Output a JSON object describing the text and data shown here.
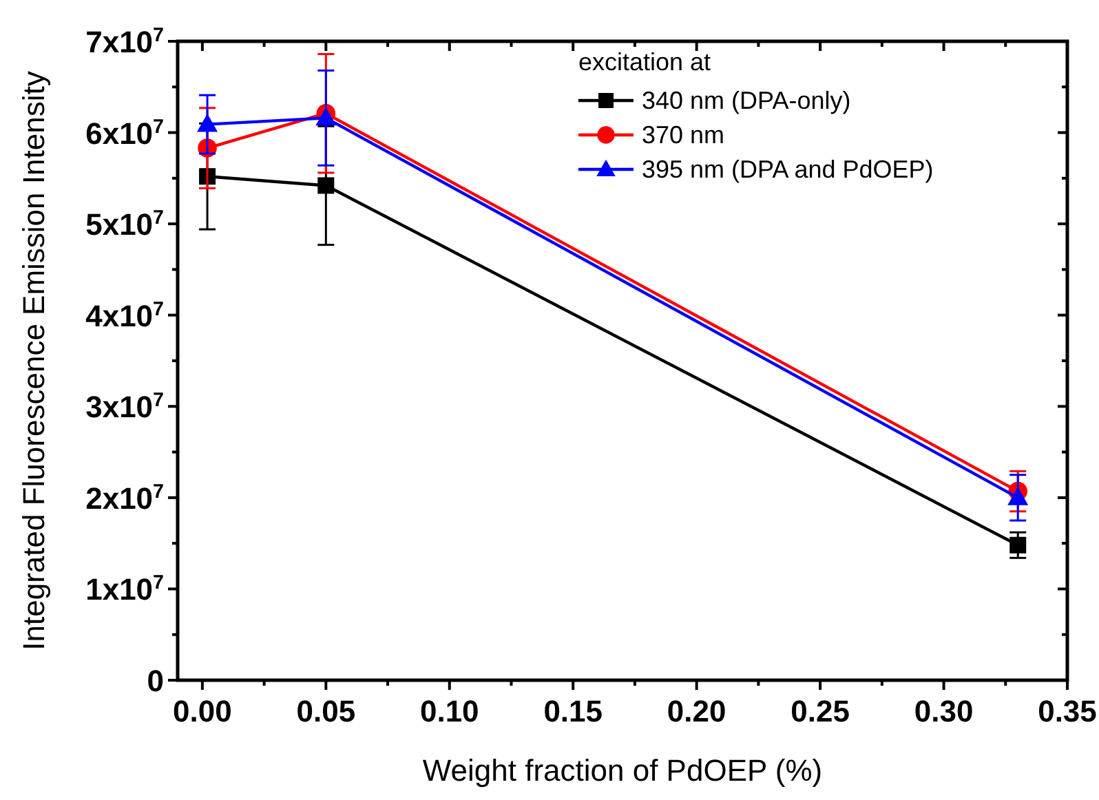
{
  "chart_data": {
    "type": "line",
    "xlabel": "Weight fraction of PdOEP (%)",
    "ylabel": "Integrated Fluorescence Emission Intensity",
    "legend_title": "excitation at",
    "legend": "top right",
    "xlim": [
      -0.01,
      0.35
    ],
    "xticks": [
      {
        "value": 0,
        "label": "0.00"
      },
      0.05,
      {
        "value": 0.1,
        "label": "0.10"
      },
      0.15,
      {
        "value": 0.2,
        "label": "0.20"
      },
      0.25,
      {
        "value": 0.3,
        "label": "0.30"
      },
      0.35,
      {
        "value": 0.025,
        "label": null
      },
      {
        "value": 0.075,
        "label": null
      },
      {
        "value": 0.125,
        "label": null
      },
      {
        "value": 0.175,
        "label": null
      },
      {
        "value": 0.225,
        "label": null
      },
      {
        "value": 0.275,
        "label": null
      },
      {
        "value": 0.325,
        "label": null
      }
    ],
    "ylim": [
      0,
      70000000
    ],
    "yticks": [
      0,
      {
        "value": 10000000,
        "label": "1x10$^{7}$"
      },
      {
        "value": 20000000,
        "label": "2x10$^{7}$"
      },
      {
        "value": 30000000,
        "label": "3x10$^{7}$"
      },
      {
        "value": 40000000,
        "label": "4x10$^{7}$"
      },
      {
        "value": 50000000,
        "label": "5x10$^{7}$"
      },
      {
        "value": 60000000,
        "label": "6x10$^{7}$"
      },
      {
        "value": 70000000,
        "label": "7x10$^{7}$"
      },
      {
        "value": 5000000,
        "label": null
      },
      {
        "value": 15000000,
        "label": null
      },
      {
        "value": 25000000,
        "label": null
      },
      {
        "value": 35000000,
        "label": null
      },
      {
        "value": 45000000,
        "label": null
      },
      {
        "value": 55000000,
        "label": null
      },
      {
        "value": 65000000,
        "label": null
      }
    ],
    "x": [
      0.002,
      0.05,
      0.33
    ],
    "series": [
      {
        "name": "340 nm (DPA-only)",
        "color": "#000000",
        "marker": "square",
        "values": [
          55200000,
          54200000,
          14800000
        ],
        "errors": [
          5800000,
          6500000,
          1400000
        ]
      },
      {
        "name": "370 nm",
        "color": "#ff0000",
        "marker": "circle",
        "values": [
          58300000,
          62100000,
          20700000
        ],
        "errors": [
          4400000,
          6500000,
          2200000
        ]
      },
      {
        "name": "395 nm (DPA and PdOEP)",
        "color": "#0000ff",
        "marker": "triangle",
        "values": [
          60900000,
          61600000,
          20000000
        ],
        "errors": [
          3200000,
          5200000,
          2500000
        ]
      }
    ]
  }
}
